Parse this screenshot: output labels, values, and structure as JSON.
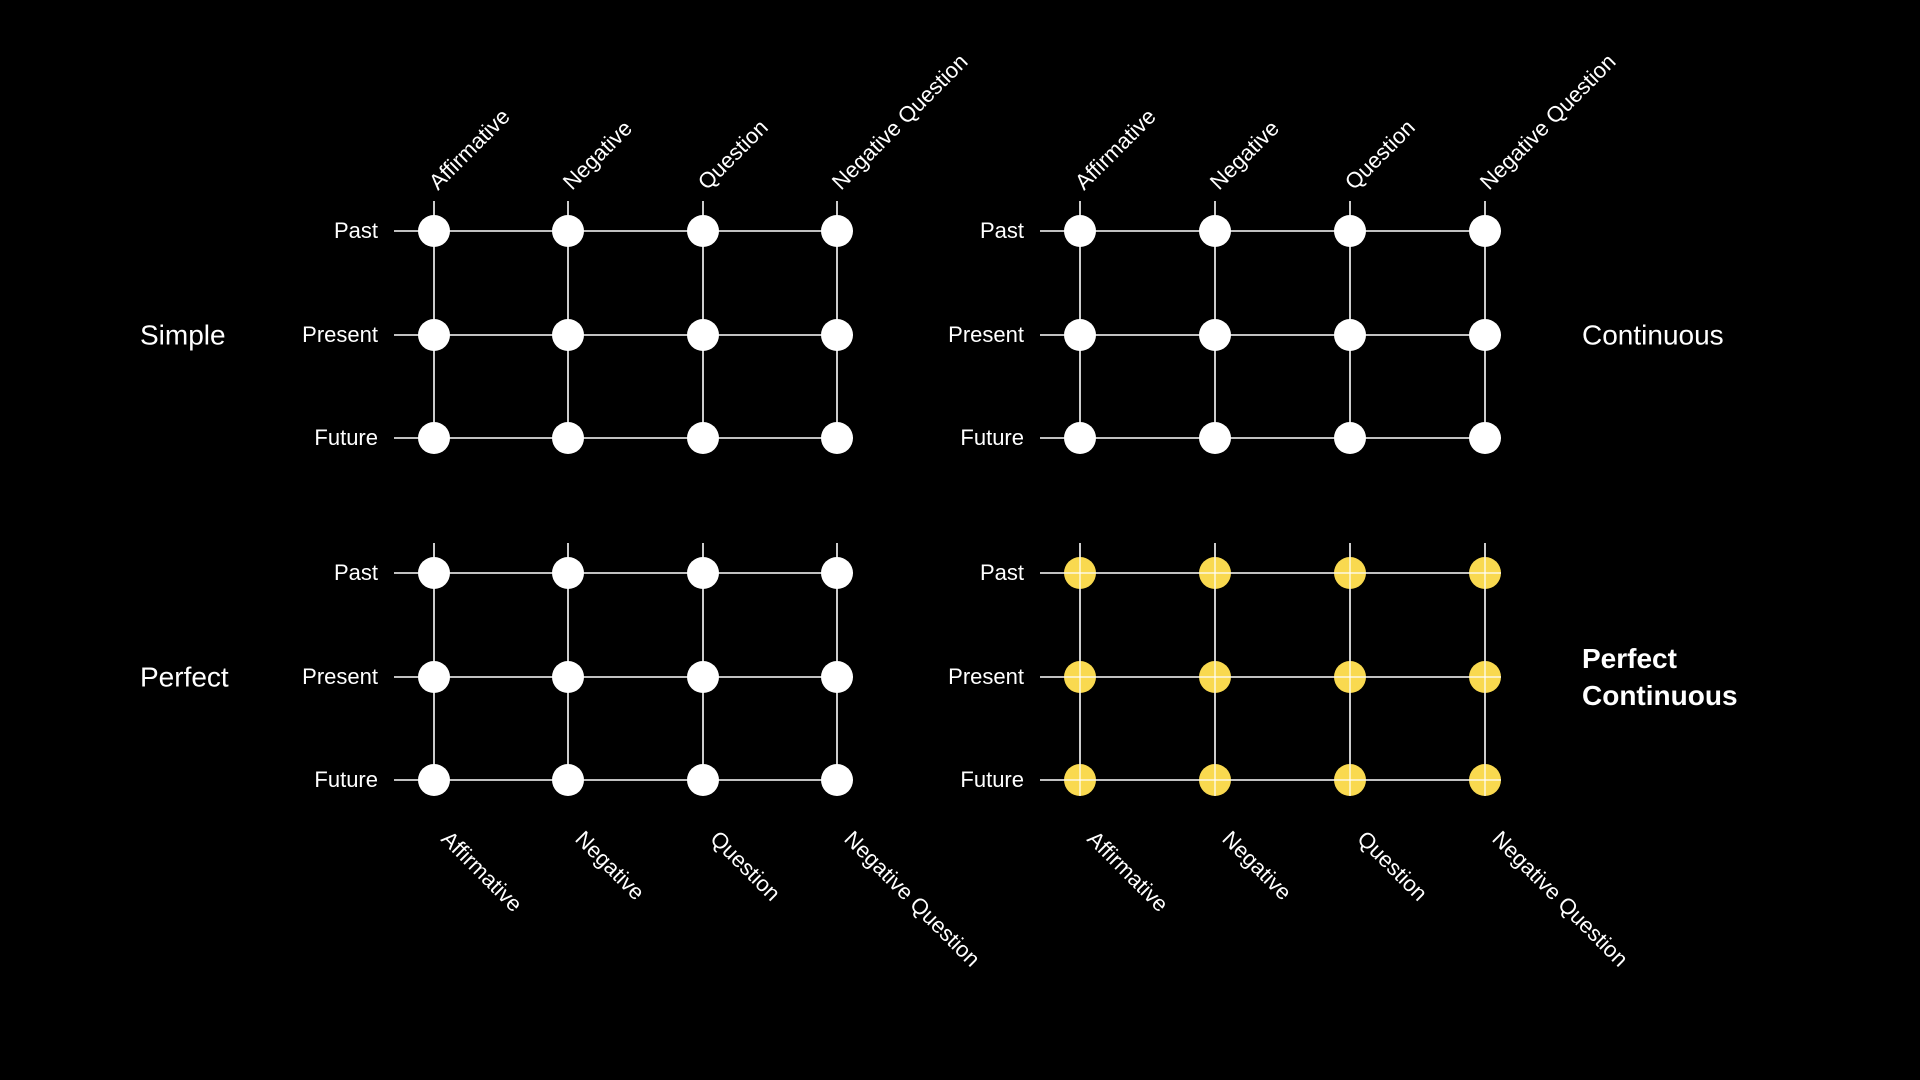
{
  "tenses": [
    "Past",
    "Present",
    "Future"
  ],
  "forms": [
    "Affirmative",
    "Negative",
    "Question",
    "Negative Question"
  ],
  "colors": {
    "background": "#000000",
    "line": "#ffffff",
    "node_default": "#ffffff",
    "node_highlight": "#f9d94f"
  },
  "grids": [
    {
      "id": "simple",
      "aspect_label": [
        "Simple"
      ],
      "aspect_bold": false,
      "highlighted": false,
      "top_labels": true,
      "bottom_labels": false
    },
    {
      "id": "continuous",
      "aspect_label": [
        "Continuous"
      ],
      "aspect_bold": false,
      "highlighted": false,
      "top_labels": true,
      "bottom_labels": false
    },
    {
      "id": "perfect",
      "aspect_label": [
        "Perfect"
      ],
      "aspect_bold": false,
      "highlighted": false,
      "top_labels": false,
      "bottom_labels": true
    },
    {
      "id": "perfect-continuous",
      "aspect_label": [
        "Perfect",
        "Continuous"
      ],
      "aspect_bold": true,
      "highlighted": true,
      "top_labels": false,
      "bottom_labels": true
    }
  ]
}
